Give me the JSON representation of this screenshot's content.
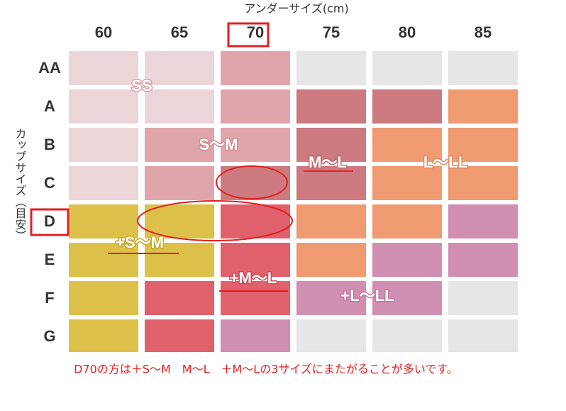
{
  "axis_x_label": "アンダーサイズ(cm)",
  "axis_y_label": "カップサイズ（目安）",
  "columns": [
    "60",
    "65",
    "70",
    "75",
    "80",
    "85"
  ],
  "rows": [
    "AA",
    "A",
    "B",
    "C",
    "D",
    "E",
    "F",
    "G"
  ],
  "size_labels": [
    "SS",
    "S～M",
    "M～L",
    "L～LL",
    "+S～M",
    "+M～L",
    "+L～LL"
  ],
  "caption": "D70の方は＋S～M　M～L　＋M～Lの3サイズにまたがることが多いです。"
}
